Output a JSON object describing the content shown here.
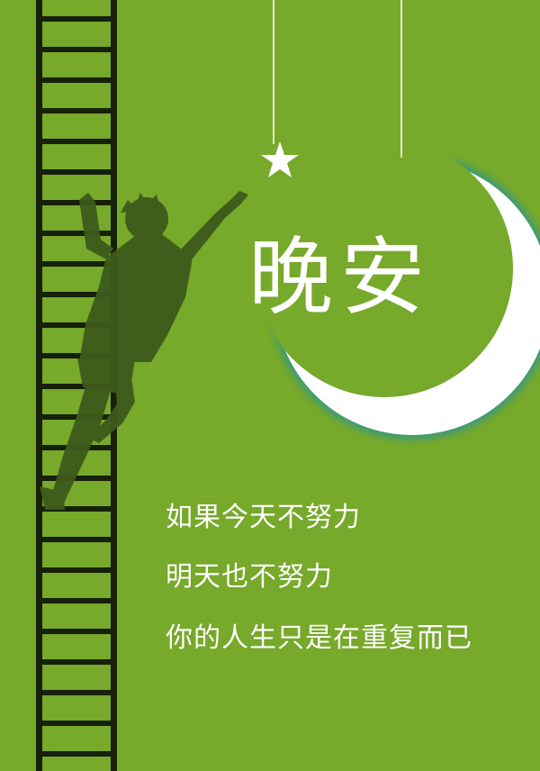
{
  "poster": {
    "background_color": "#77a92a",
    "title": "晚安",
    "lines": [
      "如果今天不努力",
      "明天也不努力",
      "你的人生只是在重复而已"
    ]
  },
  "illustration": {
    "elements": [
      "ladder",
      "climber-silhouette",
      "hanging-star",
      "hanging-crescent-moon"
    ],
    "silhouette_color": "#3d5a1b",
    "moon_color": "#ffffff",
    "moon_glow_color": "#3a9a7a"
  }
}
